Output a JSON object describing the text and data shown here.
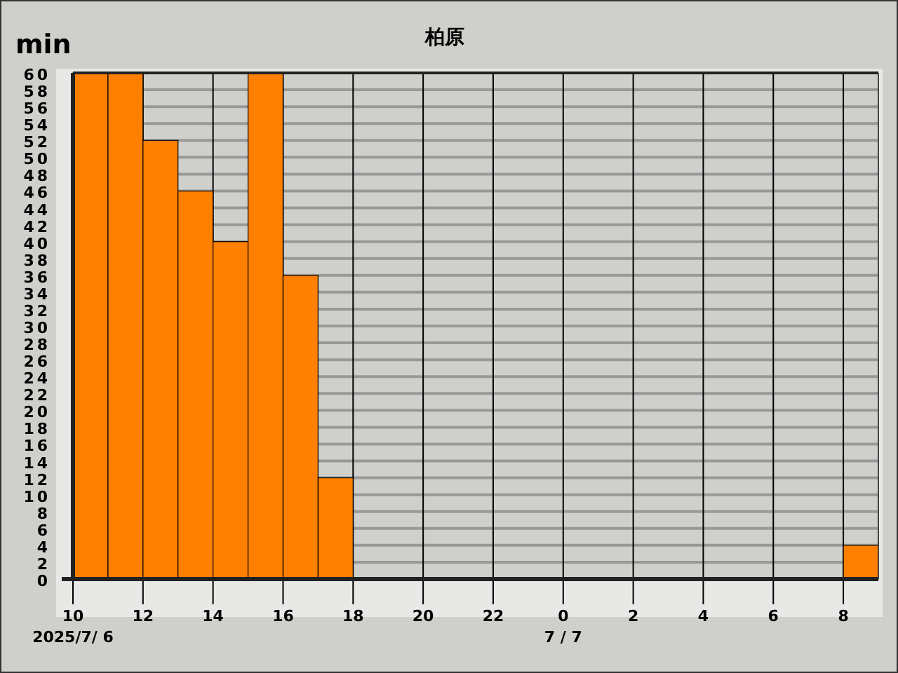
{
  "chart_data": {
    "type": "histogram",
    "title": "柏原",
    "ylabel": "min",
    "bins": [
      "2025-07-06T10:00",
      "2025-07-06T11:00",
      "2025-07-06T12:00",
      "2025-07-06T13:00",
      "2025-07-06T14:00",
      "2025-07-06T15:00",
      "2025-07-06T16:00",
      "2025-07-06T17:00",
      "2025-07-06T18:00",
      "2025-07-06T19:00",
      "2025-07-06T20:00",
      "2025-07-06T21:00",
      "2025-07-06T22:00",
      "2025-07-06T23:00",
      "2025-07-07T00:00",
      "2025-07-07T01:00",
      "2025-07-07T02:00",
      "2025-07-07T03:00",
      "2025-07-07T04:00",
      "2025-07-07T05:00",
      "2025-07-07T06:00",
      "2025-07-07T07:00",
      "2025-07-07T08:00",
      "2025-07-07T09:00"
    ],
    "values": [
      60,
      60,
      52,
      46,
      40,
      60,
      36,
      12,
      0,
      0,
      0,
      0,
      0,
      0,
      0,
      0,
      0,
      0,
      0,
      0,
      0,
      0,
      4
    ],
    "color": "#ff8000",
    "xlim": [
      "2025-07-06T10:00",
      "2025-07-07T09:00"
    ],
    "xticks": [
      {
        "value": "2025-07-06T10:00",
        "label": "10"
      },
      {
        "value": "2025-07-06T12:00",
        "label": "12"
      },
      {
        "value": "2025-07-06T14:00",
        "label": "14"
      },
      {
        "value": "2025-07-06T16:00",
        "label": "16"
      },
      {
        "value": "2025-07-06T18:00",
        "label": "18"
      },
      {
        "value": "2025-07-06T20:00",
        "label": "20"
      },
      {
        "value": "2025-07-06T22:00",
        "label": "22"
      },
      {
        "value": "2025-07-07T00:00",
        "label": "0"
      },
      {
        "value": "2025-07-07T02:00",
        "label": "2"
      },
      {
        "value": "2025-07-07T04:00",
        "label": "4"
      },
      {
        "value": "2025-07-07T06:00",
        "label": "6"
      },
      {
        "value": "2025-07-07T08:00",
        "label": "8"
      }
    ],
    "ylim": [
      0,
      60
    ],
    "yticks": [
      0,
      2,
      4,
      6,
      8,
      10,
      12,
      14,
      16,
      18,
      20,
      22,
      24,
      26,
      28,
      30,
      32,
      34,
      36,
      38,
      40,
      42,
      44,
      46,
      48,
      50,
      52,
      54,
      56,
      58,
      60
    ],
    "grid": true,
    "annotations": [
      "2025/7/ 6",
      "7 / 7"
    ]
  }
}
